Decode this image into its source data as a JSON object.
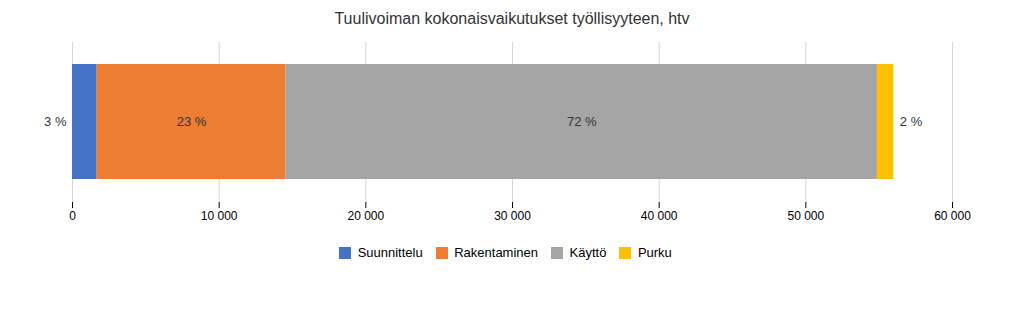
{
  "chart_data": {
    "type": "bar",
    "title": "Tuulivoiman kokonaisvaikutukset työllisyyteen, htv",
    "orientation": "horizontal",
    "stacked": true,
    "categories": [
      null
    ],
    "series": [
      {
        "name": "Suunnittelu",
        "color": "#4472C4",
        "values": [
          1680
        ],
        "shares": [
          3
        ],
        "share_labels": [
          "3 %"
        ]
      },
      {
        "name": "Rakentaminen",
        "color": "#ED7D31",
        "values": [
          12880
        ],
        "shares": [
          23
        ],
        "share_labels": [
          "23 %"
        ]
      },
      {
        "name": "Käyttö",
        "color": "#A5A5A5",
        "values": [
          40320
        ],
        "shares": [
          72
        ],
        "share_labels": [
          "72 %"
        ]
      },
      {
        "name": "Purku",
        "color": "#FFC000",
        "values": [
          1120
        ],
        "shares": [
          2
        ],
        "share_labels": [
          "2 %"
        ]
      }
    ],
    "xlim": [
      0,
      60000
    ],
    "xticks": [
      0,
      {
        "value": 10000,
        "label": "10 000"
      },
      {
        "value": 20000,
        "label": "20 000"
      },
      {
        "value": 30000,
        "label": "30 000"
      },
      {
        "value": 40000,
        "label": "40 000"
      },
      {
        "value": 50000,
        "label": "50 000"
      },
      {
        "value": 60000,
        "label": "60 000"
      }
    ],
    "grid": true,
    "legend": "bottom",
    "tick_labels": "x"
  }
}
